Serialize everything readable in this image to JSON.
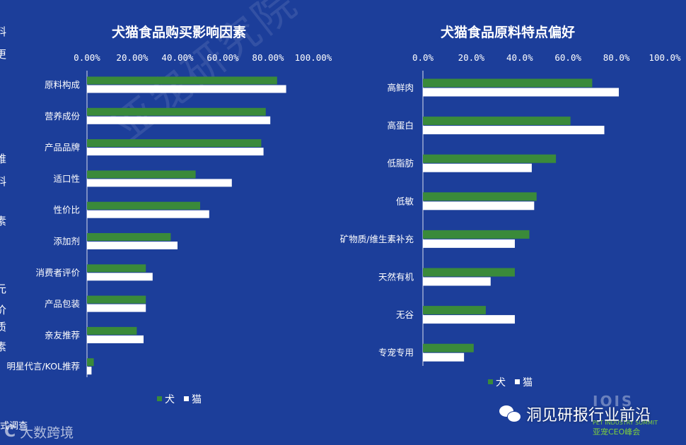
{
  "edge_glyphs": [
    "料",
    "更",
    "/",
    "维",
    "料",
    "素",
    "元",
    "价",
    "质",
    "素"
  ],
  "watermark": "亚宠研究院",
  "footer": {
    "note": "式调查",
    "brand_left": "大数跨境",
    "brand_right": "洞见研报行业前沿",
    "summit_big": "IOIS",
    "summit_mid": "PET INDUSTRY SUMMIT",
    "summit_small": "亚宠CEO峰会"
  },
  "colors": {
    "background": "#1c3e9a",
    "dog": "#3a8a3a",
    "cat": "#ffffff"
  },
  "chart_data": [
    {
      "type": "bar",
      "orientation": "horizontal",
      "title": "犬猫食品购买影响因素",
      "categories": [
        "原料构成",
        "营养成份",
        "产品品牌",
        "适口性",
        "性价比",
        "添加剂",
        "消费者评价",
        "产品包装",
        "亲友推荐",
        "明星代言/KOL推荐"
      ],
      "series": [
        {
          "name": "犬",
          "values": [
            84,
            79,
            77,
            48,
            50,
            37,
            26,
            26,
            22,
            3
          ]
        },
        {
          "name": "猫",
          "values": [
            88,
            81,
            78,
            64,
            54,
            40,
            29,
            26,
            25,
            2
          ]
        }
      ],
      "xlim": [
        0,
        100
      ],
      "ticks": [
        "0.00%",
        "20.00%",
        "40.00%",
        "60.00%",
        "80.00%",
        "100.00%"
      ],
      "legend_position": "bottom"
    },
    {
      "type": "bar",
      "orientation": "horizontal",
      "title": "犬猫食品原料特点偏好",
      "categories": [
        "高鲜肉",
        "高蛋白",
        "低脂肪",
        "低敏",
        "矿物质/维生素补充",
        "天然有机",
        "无谷",
        "专宠专用"
      ],
      "series": [
        {
          "name": "犬",
          "values": [
            70,
            61,
            55,
            47,
            44,
            38,
            26,
            21
          ]
        },
        {
          "name": "猫",
          "values": [
            81,
            75,
            45,
            46,
            38,
            28,
            38,
            17
          ]
        }
      ],
      "xlim": [
        0,
        100
      ],
      "ticks": [
        "0.0%",
        "20.0%",
        "40.0%",
        "60.0%",
        "80.0%",
        "100.0%"
      ],
      "legend_position": "bottom"
    }
  ]
}
